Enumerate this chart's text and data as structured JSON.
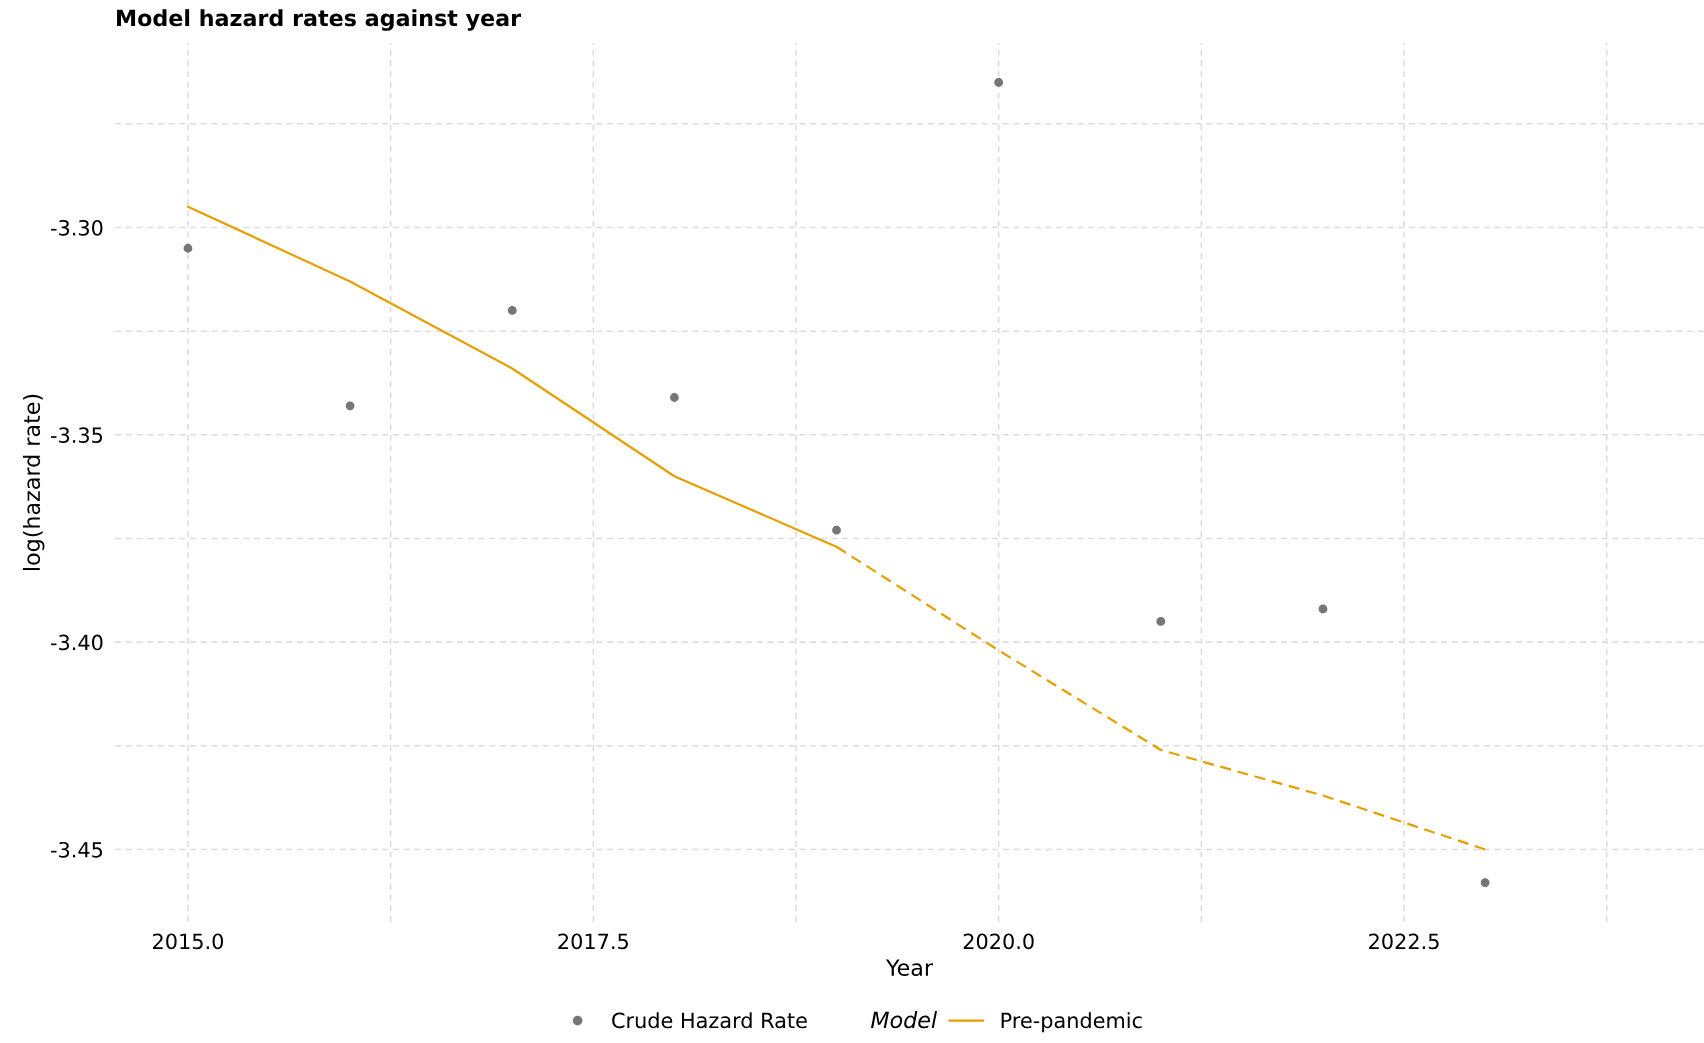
{
  "chart_data": {
    "type": "line",
    "title": "Model hazard rates against year",
    "xlabel": "Year",
    "ylabel": "log(hazard rate)",
    "legend_title": "Model",
    "series": [
      {
        "name": "Crude Hazard Rate",
        "type": "scatter",
        "color": "#767676",
        "x": [
          2015,
          2016,
          2017,
          2018,
          2019,
          2020,
          2021,
          2022,
          2023
        ],
        "values": [
          -3.305,
          -3.343,
          -3.32,
          -3.341,
          -3.373,
          -3.265,
          -3.395,
          -3.392,
          -3.458
        ]
      },
      {
        "name": "Pre-pandemic",
        "color": "#e69f00",
        "line_style": "solid",
        "x": [
          2015,
          2016,
          2017,
          2018,
          2019
        ],
        "values": [
          -3.295,
          -3.313,
          -3.334,
          -3.36,
          -3.377
        ]
      },
      {
        "color": "#e69f00",
        "line_style": "dashed",
        "x": [
          2019,
          2020,
          2021,
          2022,
          2023
        ],
        "values": [
          -3.377,
          -3.402,
          -3.426,
          -3.437,
          -3.45
        ]
      }
    ],
    "xlim": [
      2014.55,
      2024.35
    ],
    "xticks": [
      {
        "value": 2015,
        "label": "2015.0"
      },
      2017.5,
      {
        "value": 2020,
        "label": "2020.0"
      },
      2022.5
    ],
    "ylim": [
      -3.4675,
      -3.2555
    ],
    "yticks": [
      {
        "value": -3.45,
        "label": "-3.45"
      },
      {
        "value": -3.4,
        "label": "-3.40"
      },
      {
        "value": -3.35,
        "label": "-3.35"
      },
      {
        "value": -3.3,
        "label": "-3.30"
      }
    ],
    "grid": true,
    "legend": "bottom"
  }
}
